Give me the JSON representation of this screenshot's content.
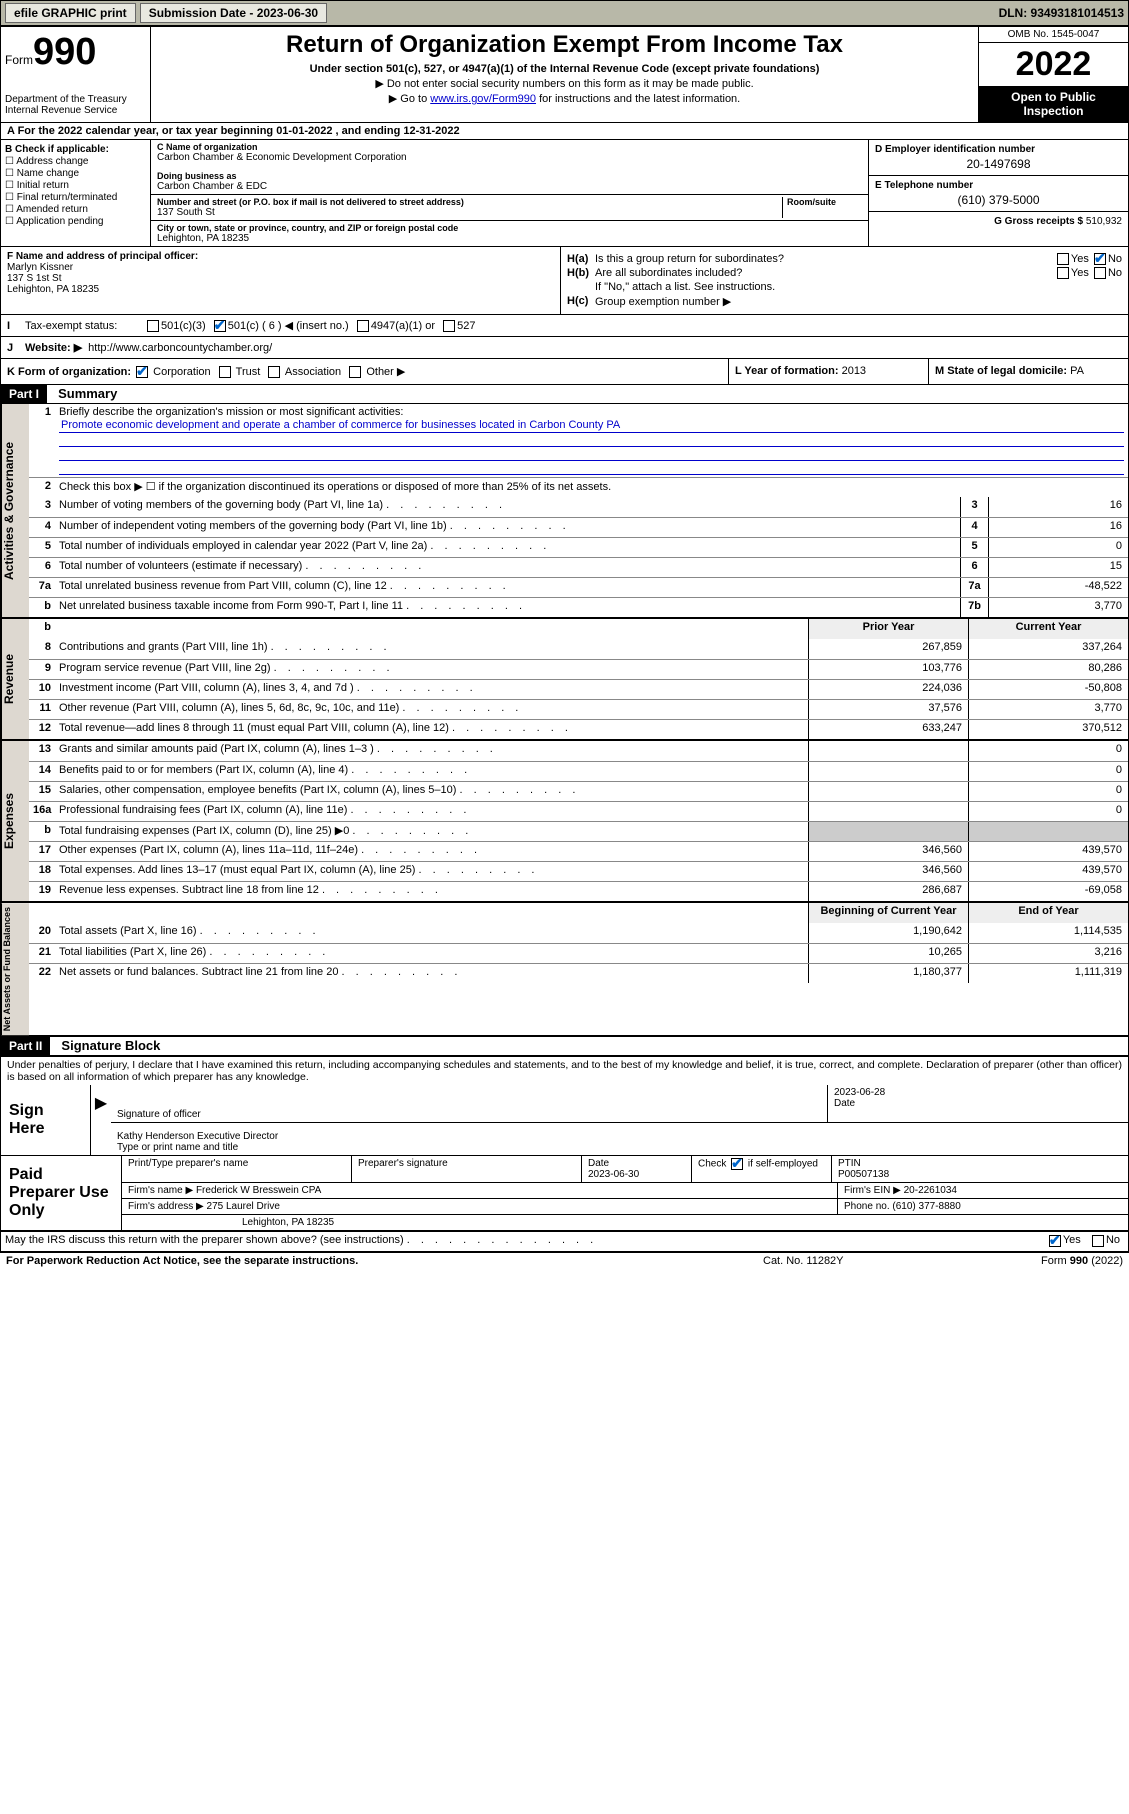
{
  "topbar": {
    "efile": "efile GRAPHIC print",
    "submission_label": "Submission Date - 2023-06-30",
    "dln": "DLN: 93493181014513"
  },
  "header": {
    "form_word": "Form",
    "form_number": "990",
    "dept": "Department of the Treasury",
    "irs": "Internal Revenue Service",
    "title": "Return of Organization Exempt From Income Tax",
    "subtitle": "Under section 501(c), 527, or 4947(a)(1) of the Internal Revenue Code (except private foundations)",
    "note1": "▶ Do not enter social security numbers on this form as it may be made public.",
    "note2_pre": "▶ Go to ",
    "note2_link": "www.irs.gov/Form990",
    "note2_post": " for instructions and the latest information.",
    "omb": "OMB No. 1545-0047",
    "year": "2022",
    "inspect": "Open to Public Inspection"
  },
  "row_a": "A For the 2022 calendar year, or tax year beginning 01-01-2022   , and ending 12-31-2022",
  "B": {
    "label": "B Check if applicable:",
    "items": [
      "Address change",
      "Name change",
      "Initial return",
      "Final return/terminated",
      "Amended return",
      "Application pending"
    ]
  },
  "C": {
    "name_label": "C Name of organization",
    "name": "Carbon Chamber & Economic Development Corporation",
    "dba_label": "Doing business as",
    "dba": "Carbon Chamber & EDC",
    "street_label": "Number and street (or P.O. box if mail is not delivered to street address)",
    "room_label": "Room/suite",
    "street": "137 South St",
    "city_label": "City or town, state or province, country, and ZIP or foreign postal code",
    "city": "Lehighton, PA  18235"
  },
  "D": {
    "label": "D Employer identification number",
    "val": "20-1497698"
  },
  "E": {
    "label": "E Telephone number",
    "val": "(610) 379-5000"
  },
  "G": {
    "label": "G Gross receipts $",
    "val": "510,932"
  },
  "F": {
    "label": "F Name and address of principal officer:",
    "name": "Marlyn Kissner",
    "addr1": "137 S 1st St",
    "addr2": "Lehighton, PA  18235"
  },
  "H": {
    "a": "Is this a group return for subordinates?",
    "b": "Are all subordinates included?",
    "b_note": "If \"No,\" attach a list. See instructions.",
    "c": "Group exemption number ▶",
    "yes": "Yes",
    "no": "No"
  },
  "I": {
    "label": "Tax-exempt status:",
    "opts": [
      "501(c)(3)",
      "501(c) ( 6 ) ◀ (insert no.)",
      "4947(a)(1) or",
      "527"
    ]
  },
  "J": {
    "label": "Website: ▶",
    "val": "http://www.carboncountychamber.org/"
  },
  "K": {
    "label": "K Form of organization:",
    "opts": [
      "Corporation",
      "Trust",
      "Association",
      "Other ▶"
    ]
  },
  "L": {
    "label": "L Year of formation:",
    "val": "2013"
  },
  "M": {
    "label": "M State of legal domicile:",
    "val": "PA"
  },
  "part1": {
    "hdr": "Part I",
    "title": "Summary",
    "q1": "Briefly describe the organization's mission or most significant activities:",
    "mission": "Promote economic development and operate a chamber of commerce for businesses located in Carbon County PA",
    "q2": "Check this box ▶ ☐  if the organization discontinued its operations or disposed of more than 25% of its net assets.",
    "rows_gov": [
      {
        "n": "3",
        "d": "Number of voting members of the governing body (Part VI, line 1a)",
        "box": "3",
        "v": "16"
      },
      {
        "n": "4",
        "d": "Number of independent voting members of the governing body (Part VI, line 1b)",
        "box": "4",
        "v": "16"
      },
      {
        "n": "5",
        "d": "Total number of individuals employed in calendar year 2022 (Part V, line 2a)",
        "box": "5",
        "v": "0"
      },
      {
        "n": "6",
        "d": "Total number of volunteers (estimate if necessary)",
        "box": "6",
        "v": "15"
      },
      {
        "n": "7a",
        "d": "Total unrelated business revenue from Part VIII, column (C), line 12",
        "box": "7a",
        "v": "-48,522"
      },
      {
        "n": "b",
        "d": "Net unrelated business taxable income from Form 990-T, Part I, line 11",
        "box": "7b",
        "v": "3,770"
      }
    ],
    "col_py": "Prior Year",
    "col_cy": "Current Year",
    "rows_rev": [
      {
        "n": "8",
        "d": "Contributions and grants (Part VIII, line 1h)",
        "py": "267,859",
        "cy": "337,264"
      },
      {
        "n": "9",
        "d": "Program service revenue (Part VIII, line 2g)",
        "py": "103,776",
        "cy": "80,286"
      },
      {
        "n": "10",
        "d": "Investment income (Part VIII, column (A), lines 3, 4, and 7d )",
        "py": "224,036",
        "cy": "-50,808"
      },
      {
        "n": "11",
        "d": "Other revenue (Part VIII, column (A), lines 5, 6d, 8c, 9c, 10c, and 11e)",
        "py": "37,576",
        "cy": "3,770"
      },
      {
        "n": "12",
        "d": "Total revenue—add lines 8 through 11 (must equal Part VIII, column (A), line 12)",
        "py": "633,247",
        "cy": "370,512"
      }
    ],
    "rows_exp": [
      {
        "n": "13",
        "d": "Grants and similar amounts paid (Part IX, column (A), lines 1–3 )",
        "py": "",
        "cy": "0"
      },
      {
        "n": "14",
        "d": "Benefits paid to or for members (Part IX, column (A), line 4)",
        "py": "",
        "cy": "0"
      },
      {
        "n": "15",
        "d": "Salaries, other compensation, employee benefits (Part IX, column (A), lines 5–10)",
        "py": "",
        "cy": "0"
      },
      {
        "n": "16a",
        "d": "Professional fundraising fees (Part IX, column (A), line 11e)",
        "py": "",
        "cy": "0"
      },
      {
        "n": "b",
        "d": "Total fundraising expenses (Part IX, column (D), line 25) ▶0",
        "py": "__shade__",
        "cy": "__shade__"
      },
      {
        "n": "17",
        "d": "Other expenses (Part IX, column (A), lines 11a–11d, 11f–24e)",
        "py": "346,560",
        "cy": "439,570"
      },
      {
        "n": "18",
        "d": "Total expenses. Add lines 13–17 (must equal Part IX, column (A), line 25)",
        "py": "346,560",
        "cy": "439,570"
      },
      {
        "n": "19",
        "d": "Revenue less expenses. Subtract line 18 from line 12",
        "py": "286,687",
        "cy": "-69,058"
      }
    ],
    "col_boy": "Beginning of Current Year",
    "col_eoy": "End of Year",
    "rows_net": [
      {
        "n": "20",
        "d": "Total assets (Part X, line 16)",
        "py": "1,190,642",
        "cy": "1,114,535"
      },
      {
        "n": "21",
        "d": "Total liabilities (Part X, line 26)",
        "py": "10,265",
        "cy": "3,216"
      },
      {
        "n": "22",
        "d": "Net assets or fund balances. Subtract line 21 from line 20",
        "py": "1,180,377",
        "cy": "1,111,319"
      }
    ],
    "side_gov": "Activities & Governance",
    "side_rev": "Revenue",
    "side_exp": "Expenses",
    "side_net": "Net Assets or Fund Balances"
  },
  "part2": {
    "hdr": "Part II",
    "title": "Signature Block",
    "penalty": "Under penalties of perjury, I declare that I have examined this return, including accompanying schedules and statements, and to the best of my knowledge and belief, it is true, correct, and complete. Declaration of preparer (other than officer) is based on all information of which preparer has any knowledge.",
    "sign_here": "Sign Here",
    "sig_officer": "Signature of officer",
    "date_label": "Date",
    "date_val": "2023-06-28",
    "name_title": "Kathy Henderson  Executive Director",
    "type_label": "Type or print name and title",
    "paid_prep": "Paid Preparer Use Only",
    "prep_name_label": "Print/Type preparer's name",
    "prep_sig_label": "Preparer's signature",
    "prep_date_label": "Date",
    "prep_date": "2023-06-30",
    "check_if": "Check",
    "self_emp": "if self-employed",
    "ptin_label": "PTIN",
    "ptin": "P00507138",
    "firm_name_label": "Firm's name      ▶",
    "firm_name": "Frederick W Bresswein CPA",
    "firm_ein_label": "Firm's EIN ▶",
    "firm_ein": "20-2261034",
    "firm_addr_label": "Firm's address ▶",
    "firm_addr1": "275 Laurel Drive",
    "firm_addr2": "Lehighton, PA  18235",
    "phone_label": "Phone no.",
    "phone": "(610) 377-8880",
    "discuss": "May the IRS discuss this return with the preparer shown above? (see instructions)"
  },
  "footer": {
    "left": "For Paperwork Reduction Act Notice, see the separate instructions.",
    "mid": "Cat. No. 11282Y",
    "right": "Form 990 (2022)"
  }
}
